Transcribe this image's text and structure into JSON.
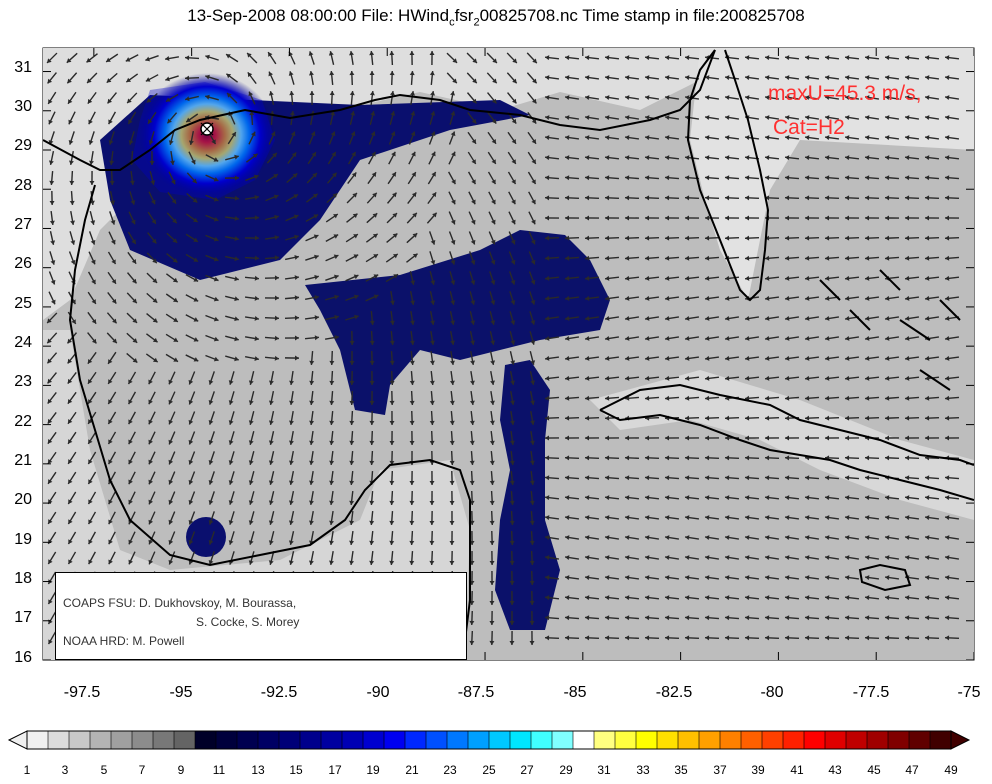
{
  "title": {
    "prefix": "13-Sep-2008 08:00:00 File: HWind",
    "sub1": "c",
    "mid": "fsr",
    "sub2": "2",
    "suffix": "00825708.nc Time stamp in file:200825708"
  },
  "map": {
    "lon_range": [
      -98.8,
      -75
    ],
    "lat_range": [
      16,
      31.6
    ],
    "x_ticks": [
      "-97.5",
      "-95",
      "-92.5",
      "-90",
      "-87.5",
      "-85",
      "-82.5",
      "-80",
      "-77.5",
      "-75"
    ],
    "y_ticks": [
      "31",
      "30",
      "29",
      "28",
      "27",
      "26",
      "25",
      "24",
      "23",
      "22",
      "21",
      "20",
      "19",
      "18",
      "17",
      "16"
    ],
    "storm_center": {
      "lon": -94.4,
      "lat": 29.4
    }
  },
  "annotation": {
    "line1": "maxU=45.3 m/s,",
    "line2": "Cat=H2",
    "color": "#ff3030"
  },
  "credits": {
    "line1": "COAPS FSU: D. Dukhovskoy, M. Bourassa,",
    "line2": "S. Cocke, S. Morey",
    "line3": "NOAA HRD:  M. Powell"
  },
  "colorbar": {
    "labels": [
      "1",
      "3",
      "5",
      "7",
      "9",
      "11",
      "13",
      "15",
      "17",
      "19",
      "21",
      "23",
      "25",
      "27",
      "29",
      "31",
      "33",
      "35",
      "37",
      "39",
      "41",
      "43",
      "45",
      "47",
      "49"
    ],
    "colors": [
      "#f0f0f0",
      "#dcdcdc",
      "#c8c8c8",
      "#b4b4b4",
      "#a0a0a0",
      "#8c8c8c",
      "#787878",
      "#646464",
      "#000028",
      "#00003c",
      "#000050",
      "#000064",
      "#000078",
      "#00008c",
      "#0000a0",
      "#0000b4",
      "#0000d0",
      "#0000f0",
      "#0028ff",
      "#0050ff",
      "#0078ff",
      "#00a0ff",
      "#00c8ff",
      "#00e6ff",
      "#40ffff",
      "#80ffff",
      "#ffffff",
      "#ffff80",
      "#ffff40",
      "#ffff00",
      "#ffe000",
      "#ffc000",
      "#ffa000",
      "#ff8000",
      "#ff6000",
      "#ff4000",
      "#ff2000",
      "#ff0000",
      "#e00000",
      "#c00000",
      "#a00000",
      "#800000",
      "#600000",
      "#400000"
    ]
  }
}
